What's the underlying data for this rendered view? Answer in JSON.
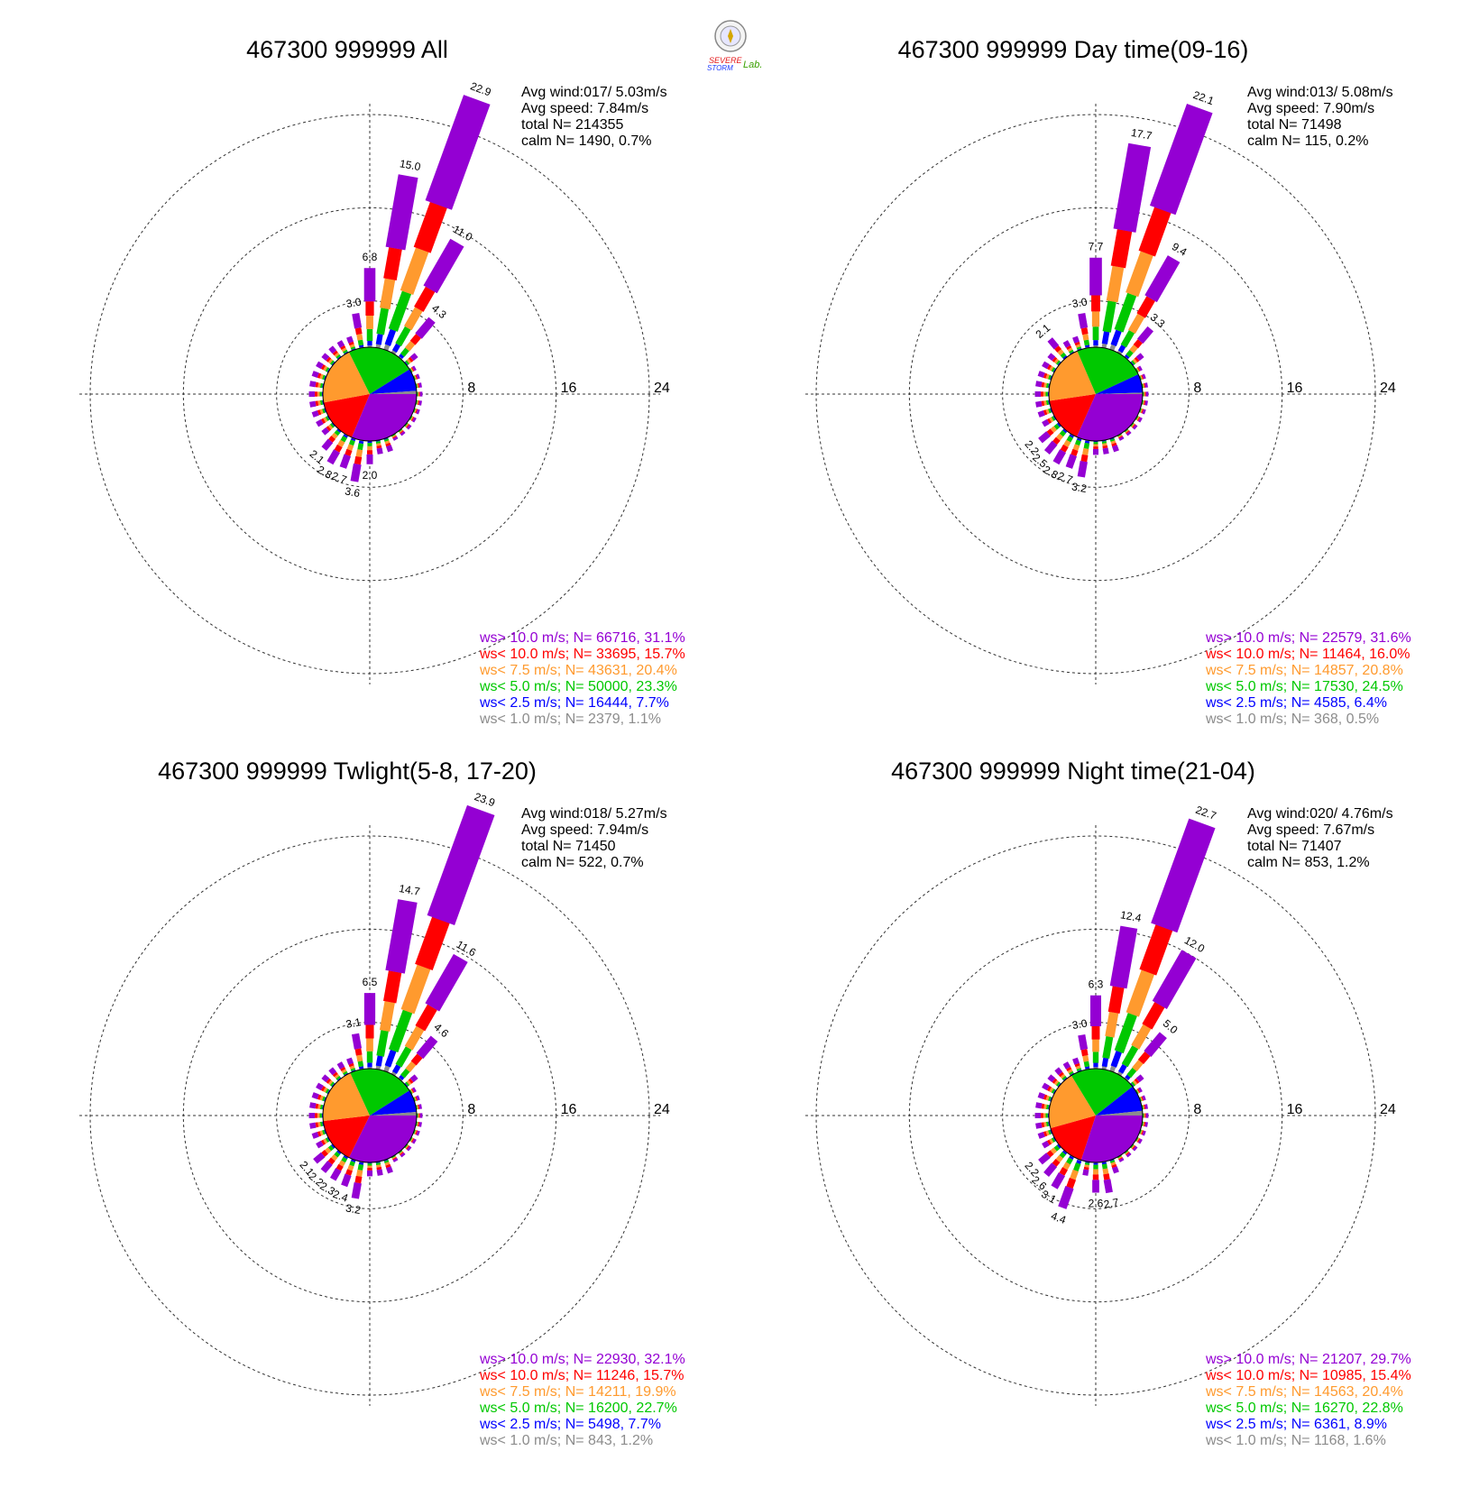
{
  "logo": {
    "line1": "SEVERE",
    "line2": "STORM",
    "line3": "Lab."
  },
  "legend_colors": [
    "#9400d3",
    "#ff0000",
    "#ff9a2e",
    "#00c800",
    "#0000ff",
    "#8c8c8c"
  ],
  "chart_data": [
    {
      "type": "wind-rose",
      "title": "467300 999999 All",
      "stats": {
        "avg_wind": "Avg wind:017/ 5.03m/s",
        "avg_speed": "Avg speed: 7.84m/s",
        "total": "total N=     214355",
        "calm": "calm N=   1490,   0.7%"
      },
      "rings": [
        8,
        16,
        24
      ],
      "rmax": 24,
      "legend": [
        "ws> 10.0 m/s; N= 66716, 31.1%",
        "ws< 10.0 m/s; N= 33695, 15.7%",
        "ws<  7.5 m/s; N= 43631, 20.4%",
        "ws<  5.0 m/s; N= 50000, 23.3%",
        "ws<  2.5 m/s; N= 16444,  7.7%",
        "ws<  1.0 m/s; N=  2379,  1.1%"
      ],
      "bars": [
        {
          "dir": 0,
          "total": 6.8
        },
        {
          "dir": 10,
          "total": 15.0
        },
        {
          "dir": 20,
          "total": 22.9
        },
        {
          "dir": 30,
          "total": 11.0
        },
        {
          "dir": 40,
          "total": 4.3
        },
        {
          "dir": 350,
          "total": 3.0
        },
        {
          "dir": 180,
          "total": 2.0
        },
        {
          "dir": 190,
          "total": 3.6
        },
        {
          "dir": 200,
          "total": 2.7
        },
        {
          "dir": 210,
          "total": 2.8
        },
        {
          "dir": 220,
          "total": 2.1
        }
      ],
      "pie": [
        31.1,
        15.7,
        20.4,
        23.3,
        7.7,
        1.1
      ]
    },
    {
      "type": "wind-rose",
      "title": "467300 999999 Day time(09-16)",
      "stats": {
        "avg_wind": "Avg wind:013/ 5.08m/s",
        "avg_speed": "Avg speed: 7.90m/s",
        "total": "total N=      71498",
        "calm": "calm N=    115,   0.2%"
      },
      "rings": [
        8,
        16,
        24
      ],
      "rmax": 24,
      "legend": [
        "ws> 10.0 m/s; N= 22579, 31.6%",
        "ws< 10.0 m/s; N= 11464, 16.0%",
        "ws<  7.5 m/s; N= 14857, 20.8%",
        "ws<  5.0 m/s; N= 17530, 24.5%",
        "ws<  2.5 m/s; N=  4585,  6.4%",
        "ws<  1.0 m/s; N=   368,  0.5%"
      ],
      "bars": [
        {
          "dir": 0,
          "total": 7.7
        },
        {
          "dir": 10,
          "total": 17.7
        },
        {
          "dir": 20,
          "total": 22.1
        },
        {
          "dir": 30,
          "total": 9.4
        },
        {
          "dir": 40,
          "total": 3.3
        },
        {
          "dir": 350,
          "total": 3.0
        },
        {
          "dir": 320,
          "total": 2.1
        },
        {
          "dir": 190,
          "total": 3.2
        },
        {
          "dir": 200,
          "total": 2.7
        },
        {
          "dir": 210,
          "total": 2.8
        },
        {
          "dir": 220,
          "total": 2.5
        },
        {
          "dir": 230,
          "total": 2.2
        }
      ],
      "pie": [
        31.6,
        16.0,
        20.8,
        24.5,
        6.4,
        0.5
      ]
    },
    {
      "type": "wind-rose",
      "title": "467300 999999 Twlight(5-8, 17-20)",
      "stats": {
        "avg_wind": "Avg wind:018/ 5.27m/s",
        "avg_speed": "Avg speed: 7.94m/s",
        "total": "total N=      71450",
        "calm": "calm N=    522,   0.7%"
      },
      "rings": [
        8,
        16,
        24
      ],
      "rmax": 24,
      "legend": [
        "ws> 10.0 m/s; N= 22930, 32.1%",
        "ws< 10.0 m/s; N= 11246, 15.7%",
        "ws<  7.5 m/s; N= 14211, 19.9%",
        "ws<  5.0 m/s; N= 16200, 22.7%",
        "ws<  2.5 m/s; N=  5498,  7.7%",
        "ws<  1.0 m/s; N=   843,  1.2%"
      ],
      "bars": [
        {
          "dir": 0,
          "total": 6.5
        },
        {
          "dir": 10,
          "total": 14.7
        },
        {
          "dir": 20,
          "total": 23.9
        },
        {
          "dir": 30,
          "total": 11.6
        },
        {
          "dir": 40,
          "total": 4.6
        },
        {
          "dir": 350,
          "total": 3.1
        },
        {
          "dir": 190,
          "total": 3.2
        },
        {
          "dir": 200,
          "total": 2.4
        },
        {
          "dir": 210,
          "total": 2.3
        },
        {
          "dir": 220,
          "total": 2.2
        },
        {
          "dir": 230,
          "total": 2.1
        }
      ],
      "pie": [
        32.1,
        15.7,
        19.9,
        22.7,
        7.7,
        1.2
      ]
    },
    {
      "type": "wind-rose",
      "title": "467300 999999 Night time(21-04)",
      "stats": {
        "avg_wind": "Avg wind:020/ 4.76m/s",
        "avg_speed": "Avg speed: 7.67m/s",
        "total": "total N=      71407",
        "calm": "calm N=    853,   1.2%"
      },
      "rings": [
        8,
        16,
        24
      ],
      "rmax": 24,
      "legend": [
        "ws> 10.0 m/s; N= 21207, 29.7%",
        "ws< 10.0 m/s; N= 10985, 15.4%",
        "ws<  7.5 m/s; N= 14563, 20.4%",
        "ws<  5.0 m/s; N= 16270, 22.8%",
        "ws<  2.5 m/s; N=  6361,  8.9%",
        "ws<  1.0 m/s; N=  1168,  1.6%"
      ],
      "bars": [
        {
          "dir": 0,
          "total": 6.3
        },
        {
          "dir": 10,
          "total": 12.4
        },
        {
          "dir": 20,
          "total": 22.7
        },
        {
          "dir": 30,
          "total": 12.0
        },
        {
          "dir": 40,
          "total": 5.0
        },
        {
          "dir": 350,
          "total": 3.0
        },
        {
          "dir": 170,
          "total": 2.7
        },
        {
          "dir": 180,
          "total": 2.6
        },
        {
          "dir": 200,
          "total": 4.4
        },
        {
          "dir": 210,
          "total": 3.1
        },
        {
          "dir": 220,
          "total": 2.6
        },
        {
          "dir": 230,
          "total": 2.2
        }
      ],
      "pie": [
        29.7,
        15.4,
        20.4,
        22.8,
        8.9,
        1.6
      ]
    }
  ]
}
